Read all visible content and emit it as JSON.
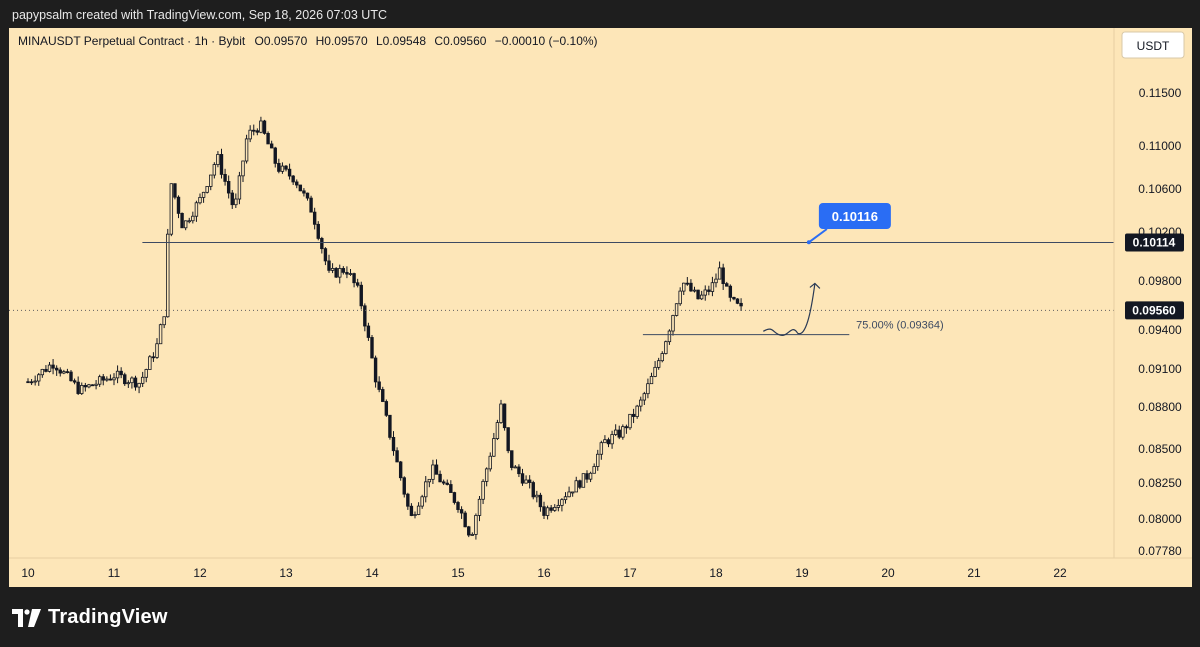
{
  "header": {
    "attribution": "papypsalm created with TradingView.com, Sep 18, 2026 07:03 UTC"
  },
  "chart_data": {
    "type": "candlestick",
    "title": "MINAUSDT Perpetual Contract · 1h · Bybit",
    "ohlc_summary": {
      "open": "O0.09570",
      "high": "H0.09570",
      "low": "L0.09548",
      "close": "C0.09560",
      "change": "−0.00010 (−0.10%)"
    },
    "currency": "USDT",
    "price_ticks": [
      "0.11500",
      "0.11000",
      "0.10600",
      "0.10200",
      "0.09800",
      "0.09400",
      "0.09100",
      "0.08800",
      "0.08500",
      "0.08250",
      "0.08000",
      "0.07780"
    ],
    "date_ticks": [
      "10",
      "11",
      "12",
      "13",
      "14",
      "15",
      "16",
      "17",
      "18",
      "19",
      "20",
      "21",
      "22"
    ],
    "current_price": "0.09560",
    "resistance_level": "0.10114",
    "callout_label": "0.10116",
    "fib_label": "75.00% (0.09364)",
    "close_series": [
      {
        "day": 10.0,
        "close": 0.09
      },
      {
        "day": 10.3,
        "close": 0.0915
      },
      {
        "day": 10.6,
        "close": 0.0893
      },
      {
        "day": 11.0,
        "close": 0.0905
      },
      {
        "day": 11.3,
        "close": 0.0899
      },
      {
        "day": 11.5,
        "close": 0.0928
      },
      {
        "day": 11.6,
        "close": 0.096
      },
      {
        "day": 11.65,
        "close": 0.107
      },
      {
        "day": 11.8,
        "close": 0.1025
      },
      {
        "day": 12.0,
        "close": 0.105
      },
      {
        "day": 12.2,
        "close": 0.109
      },
      {
        "day": 12.4,
        "close": 0.104
      },
      {
        "day": 12.55,
        "close": 0.111
      },
      {
        "day": 12.7,
        "close": 0.112
      },
      {
        "day": 12.9,
        "close": 0.108
      },
      {
        "day": 13.1,
        "close": 0.107
      },
      {
        "day": 13.3,
        "close": 0.104
      },
      {
        "day": 13.5,
        "close": 0.0985
      },
      {
        "day": 13.7,
        "close": 0.099
      },
      {
        "day": 13.85,
        "close": 0.097
      },
      {
        "day": 14.05,
        "close": 0.09
      },
      {
        "day": 14.25,
        "close": 0.085
      },
      {
        "day": 14.45,
        "close": 0.08
      },
      {
        "day": 14.7,
        "close": 0.0835
      },
      {
        "day": 15.0,
        "close": 0.081
      },
      {
        "day": 15.15,
        "close": 0.0788
      },
      {
        "day": 15.35,
        "close": 0.084
      },
      {
        "day": 15.5,
        "close": 0.088
      },
      {
        "day": 15.6,
        "close": 0.084
      },
      {
        "day": 15.8,
        "close": 0.0825
      },
      {
        "day": 16.0,
        "close": 0.0805
      },
      {
        "day": 16.3,
        "close": 0.082
      },
      {
        "day": 16.5,
        "close": 0.083
      },
      {
        "day": 16.7,
        "close": 0.0855
      },
      {
        "day": 16.9,
        "close": 0.0862
      },
      {
        "day": 17.1,
        "close": 0.088
      },
      {
        "day": 17.3,
        "close": 0.091
      },
      {
        "day": 17.45,
        "close": 0.094
      },
      {
        "day": 17.6,
        "close": 0.098
      },
      {
        "day": 17.8,
        "close": 0.0965
      },
      {
        "day": 17.95,
        "close": 0.0975
      },
      {
        "day": 18.05,
        "close": 0.099
      },
      {
        "day": 18.15,
        "close": 0.0965
      },
      {
        "day": 18.3,
        "close": 0.0956
      }
    ],
    "projection_path": [
      {
        "day": 18.55,
        "price": 0.0939
      },
      {
        "day": 18.75,
        "price": 0.0936
      },
      {
        "day": 18.95,
        "price": 0.09375
      },
      {
        "day": 19.15,
        "price": 0.0978
      }
    ],
    "grid": false
  }
}
